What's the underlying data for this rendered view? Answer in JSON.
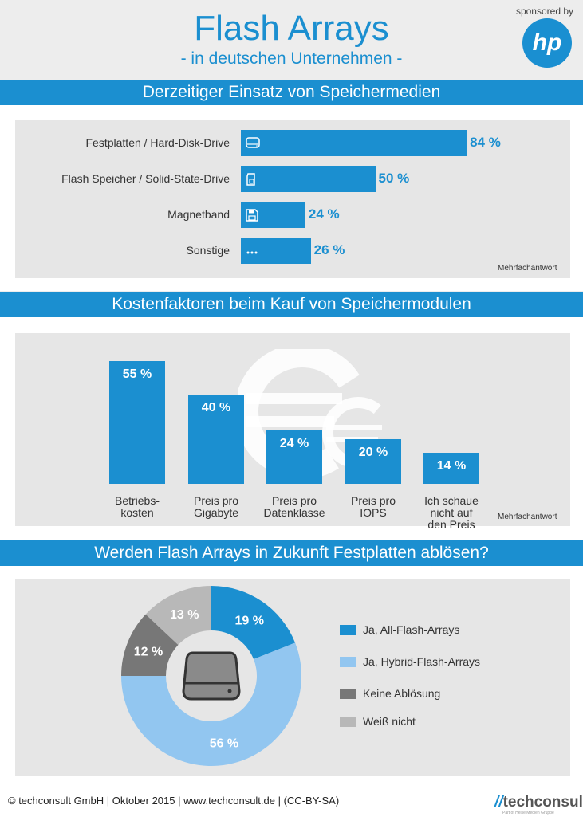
{
  "header": {
    "title": "Flash Arrays",
    "subtitle": "- in deutschen Unternehmen -",
    "sponsor_label": "sponsored by",
    "sponsor_logo": "hp"
  },
  "colors": {
    "blue": "#1b8fd0",
    "light_blue": "#92c6f0",
    "dark_gray": "#777777",
    "light_gray": "#b8b8b8"
  },
  "section1": {
    "title": "Derzeitiger Einsatz von Speichermedien",
    "note": "Mehrfachantwort"
  },
  "section2": {
    "title": "Kostenfaktoren beim Kauf von Speichermodulen",
    "note": "Mehrfachantwort"
  },
  "section3": {
    "title": "Werden Flash Arrays in Zukunft Festplatten ablösen?"
  },
  "chart_data": [
    {
      "type": "bar",
      "orientation": "horizontal",
      "title": "Derzeitiger Einsatz von Speichermedien",
      "categories": [
        "Festplatten / Hard-Disk-Drive",
        "Flash Speicher / Solid-State-Drive",
        "Magnetband",
        "Sonstige"
      ],
      "values": [
        84,
        50,
        24,
        26
      ],
      "value_labels": [
        "84 %",
        "50 %",
        "24 %",
        "26 %"
      ],
      "icons": [
        "hard-disk-icon",
        "sd-card-icon",
        "floppy-disk-icon",
        "ellipsis-icon"
      ],
      "xlim": [
        0,
        100
      ],
      "grid": false
    },
    {
      "type": "bar",
      "orientation": "vertical",
      "title": "Kostenfaktoren beim Kauf von Speichermodulen",
      "categories": [
        "Betriebs-\nkosten",
        "Preis pro\nGigabyte",
        "Preis pro\nDatenklasse",
        "Preis pro\nIOPS",
        "Ich schaue\nnicht auf\nden Preis"
      ],
      "values": [
        55,
        40,
        24,
        20,
        14
      ],
      "value_labels": [
        "55 %",
        "40 %",
        "24 %",
        "20 %",
        "14 %"
      ],
      "ylim": [
        0,
        55
      ],
      "grid": false
    },
    {
      "type": "pie",
      "title": "Werden Flash Arrays in Zukunft Festplatten ablösen?",
      "labels": [
        "Ja, All-Flash-Arrays",
        "Ja, Hybrid-Flash-Arrays",
        "Keine Ablösung",
        "Weiß nicht"
      ],
      "values": [
        19,
        56,
        12,
        13
      ],
      "value_labels": [
        "19 %",
        "56 %",
        "12 %",
        "13 %"
      ],
      "colors": [
        "#1b8fd0",
        "#92c6f0",
        "#777777",
        "#b8b8b8"
      ],
      "donut": true,
      "legend": "right"
    }
  ],
  "footer": {
    "text": "© techconsult GmbH | Oktober 2015 | www.techconsult.de | (CC-BY-SA)",
    "logo": "techconsult",
    "logo_tagline": "Part of Heise Medien Gruppe"
  }
}
